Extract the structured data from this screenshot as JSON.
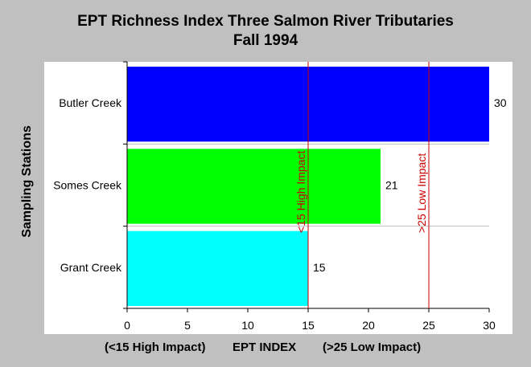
{
  "chart_data": {
    "type": "bar",
    "orientation": "horizontal",
    "title": "EPT Richness Index Three Salmon River Tributaries",
    "subtitle": "Fall 1994",
    "ylabel": "Sampling Stations",
    "xlabel_left": "(<15 High Impact)",
    "xlabel_center": "EPT INDEX",
    "xlabel_right": "(>25 Low Impact)",
    "categories": [
      "Butler Creek",
      "Somes Creek",
      "Grant Creek"
    ],
    "values": [
      30,
      21,
      15
    ],
    "value_labels": [
      "30",
      "21",
      "15"
    ],
    "colors": [
      "#0000ff",
      "#00ff00",
      "#00ffff"
    ],
    "xlim": [
      0,
      30
    ],
    "xticks": [
      0,
      5,
      10,
      15,
      20,
      25,
      30
    ],
    "grid": "horizontal lines between categories",
    "reference_lines": [
      {
        "x": 15,
        "label": "<15 High Impact",
        "color": "#cc0000"
      },
      {
        "x": 25,
        "label": ">25 Low Impact",
        "color": "#cc0000"
      }
    ],
    "plot_background": "#ffffff"
  }
}
